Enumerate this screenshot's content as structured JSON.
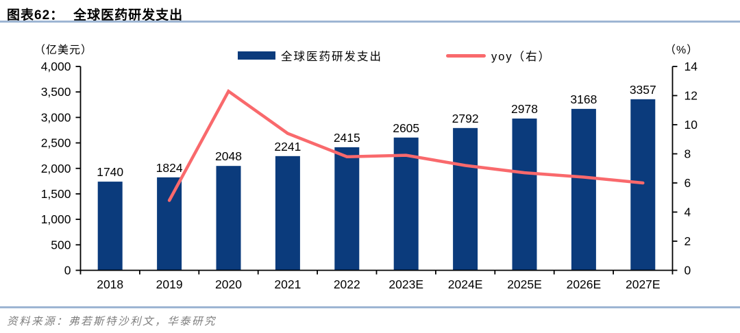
{
  "header": {
    "figure_label": "图表62：",
    "title": "全球医药研发支出"
  },
  "footer": {
    "source": "资料来源：弗若斯特沙利文，华泰研究"
  },
  "colors": {
    "rule": "#9db5d3",
    "source_text": "#7f7f7f",
    "axis": "#000000"
  },
  "chart_data": {
    "type": "bar",
    "subtype": "combo-bar-line",
    "title": "全球医药研发支出",
    "categories": [
      "2018",
      "2019",
      "2020",
      "2021",
      "2022",
      "2023E",
      "2024E",
      "2025E",
      "2026E",
      "2027E"
    ],
    "series": [
      {
        "name": "全球医药研发支出",
        "type": "bar",
        "axis": "left",
        "color": "#0b3b7c",
        "values": [
          1740,
          1824,
          2048,
          2241,
          2415,
          2605,
          2792,
          2978,
          3168,
          3357
        ],
        "data_labels": [
          "1740",
          "1824",
          "2048",
          "2241",
          "2415",
          "2605",
          "2792",
          "2978",
          "3168",
          "3357"
        ]
      },
      {
        "name": "yoy（右）",
        "type": "line",
        "axis": "right",
        "color": "#f9696c",
        "values": [
          null,
          4.8,
          12.3,
          9.4,
          7.8,
          7.9,
          7.2,
          6.7,
          6.4,
          6.0
        ],
        "data_labels": false
      }
    ],
    "left_axis": {
      "unit": "（亿美元）",
      "min": 0,
      "max": 4000,
      "step": 500,
      "ticks": [
        "0",
        "500",
        "1,000",
        "1,500",
        "2,000",
        "2,500",
        "3,000",
        "3,500",
        "4,000"
      ]
    },
    "right_axis": {
      "unit": "（%）",
      "min": 0,
      "max": 14,
      "step": 2,
      "ticks": [
        "0",
        "2",
        "4",
        "6",
        "8",
        "10",
        "12",
        "14"
      ]
    },
    "legend_position": "top",
    "grid": false
  }
}
